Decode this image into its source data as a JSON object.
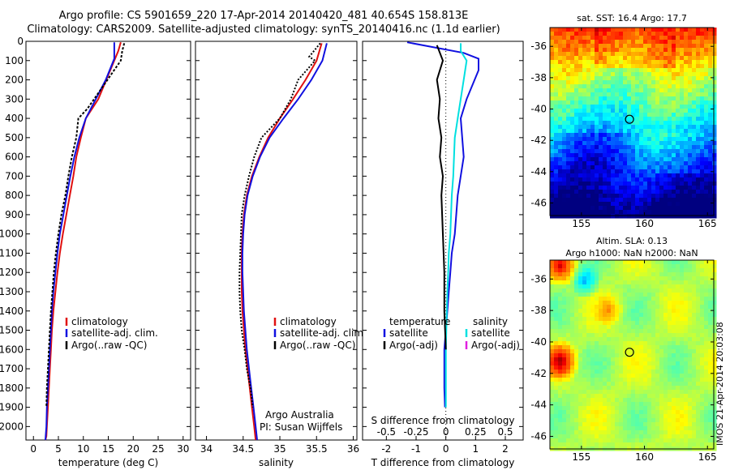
{
  "header": {
    "line1": "Argo profile: CS 5901659_220 17-Apr-2014 20140420_481 40.654S 158.813E",
    "line2": "Climatology: CARS2009. Satellite-adjusted climatology: synTS_20140416.nc (1.1d earlier)"
  },
  "colors": {
    "climatology": "#e01010",
    "satellite": "#1010e0",
    "argo": "#000000",
    "salinity_satellite": "#00e0e0",
    "salinity_argo": "#e020e0"
  },
  "chart_data": [
    {
      "type": "line",
      "xlabel": "temperature (deg C)",
      "xticks": [
        0,
        5,
        10,
        15,
        20,
        25,
        30
      ],
      "xlim": [
        -1.5,
        31.5
      ],
      "yticks": [
        0,
        100,
        200,
        300,
        400,
        500,
        600,
        700,
        800,
        900,
        1000,
        1100,
        1200,
        1300,
        1400,
        1500,
        1600,
        1700,
        1800,
        1900,
        2000
      ],
      "ylim": [
        0,
        2070
      ],
      "y_inverted": true,
      "legend": [
        "climatology",
        "satellite-adj. clim.",
        "Argo(..raw -QC)"
      ],
      "legend_position": "lower-left",
      "series": [
        {
          "name": "climatology",
          "x": [
            17.5,
            17.0,
            13.0,
            10.5,
            9.5,
            8.6,
            8.0,
            7.3,
            6.6,
            5.9,
            5.3,
            4.8,
            4.4,
            4.0,
            3.7,
            3.5,
            3.3,
            3.1,
            2.9,
            2.7,
            2.6,
            2.4
          ],
          "y": [
            5,
            50,
            300,
            400,
            500,
            600,
            700,
            800,
            900,
            1000,
            1100,
            1200,
            1300,
            1400,
            1500,
            1600,
            1700,
            1800,
            1900,
            2000,
            2050,
            2070
          ]
        },
        {
          "name": "satellite-adj. clim.",
          "x": [
            16.2,
            16.2,
            14.5,
            12.5,
            10.5,
            9.2,
            8.2,
            7.4,
            6.7,
            6.0,
            5.3,
            4.8,
            4.4,
            4.0,
            3.7,
            3.5,
            3.3,
            3.1,
            2.9,
            2.7,
            2.6,
            2.4
          ],
          "y": [
            5,
            90,
            200,
            300,
            400,
            500,
            600,
            700,
            800,
            900,
            1000,
            1100,
            1200,
            1300,
            1400,
            1500,
            1600,
            1700,
            1800,
            1900,
            2000,
            2070
          ]
        },
        {
          "name": "Argo(..raw -QC)",
          "x": [
            18.2,
            17.8,
            17.5,
            13.5,
            10.8,
            9.0,
            8.6,
            7.7,
            7.0,
            6.4,
            5.6,
            5.0,
            4.5,
            4.1,
            3.8,
            3.5,
            3.3,
            3.1,
            2.9,
            2.7,
            2.6
          ],
          "y": [
            10,
            50,
            100,
            250,
            350,
            400,
            500,
            600,
            700,
            800,
            900,
            1000,
            1100,
            1200,
            1300,
            1400,
            1500,
            1600,
            1700,
            1800,
            1900
          ]
        }
      ]
    },
    {
      "type": "line",
      "xlabel": "salinity",
      "xticks": [
        34,
        34.5,
        35,
        35.5,
        36
      ],
      "xlim": [
        33.85,
        36.05
      ],
      "yticks": [
        0,
        100,
        200,
        300,
        400,
        500,
        600,
        700,
        800,
        900,
        1000,
        1100,
        1200,
        1300,
        1400,
        1500,
        1600,
        1700,
        1800,
        1900,
        2000
      ],
      "ylim": [
        0,
        2070
      ],
      "y_inverted": true,
      "legend": [
        "climatology",
        "satellite-adj. clim.",
        "Argo(..raw -QC)"
      ],
      "legend_position": "middle-left",
      "annotations": [
        "Argo Australia",
        "PI: Susan Wijffels"
      ],
      "series": [
        {
          "name": "climatology",
          "x": [
            35.57,
            35.5,
            35.35,
            35.18,
            35.0,
            34.84,
            34.72,
            34.62,
            34.55,
            34.51,
            34.49,
            34.48,
            34.48,
            34.48,
            34.49,
            34.51,
            34.53,
            34.56,
            34.59,
            34.62,
            34.65,
            34.67
          ],
          "y": [
            10,
            100,
            200,
            300,
            400,
            500,
            600,
            700,
            800,
            900,
            1000,
            1100,
            1200,
            1300,
            1400,
            1500,
            1600,
            1700,
            1800,
            1900,
            2000,
            2070
          ]
        },
        {
          "name": "satellite-adj. clim.",
          "x": [
            35.64,
            35.58,
            35.43,
            35.25,
            35.05,
            34.86,
            34.73,
            34.63,
            34.56,
            34.52,
            34.5,
            34.49,
            34.49,
            34.5,
            34.51,
            34.53,
            34.55,
            34.58,
            34.61,
            34.64,
            34.67,
            34.69
          ],
          "y": [
            10,
            100,
            200,
            300,
            400,
            500,
            600,
            700,
            800,
            900,
            1000,
            1100,
            1200,
            1300,
            1400,
            1500,
            1600,
            1700,
            1800,
            1900,
            2000,
            2070
          ]
        },
        {
          "name": "Argo(..raw -QC)",
          "x": [
            35.55,
            35.4,
            35.48,
            35.25,
            35.15,
            35.0,
            34.75,
            34.65,
            34.58,
            34.52,
            34.48,
            34.47,
            34.46,
            34.45,
            34.45,
            34.46,
            34.48,
            34.52,
            34.55,
            34.6,
            34.63
          ],
          "y": [
            10,
            80,
            100,
            200,
            300,
            400,
            500,
            600,
            700,
            800,
            900,
            1000,
            1100,
            1200,
            1300,
            1400,
            1500,
            1600,
            1700,
            1800,
            1900
          ]
        }
      ]
    },
    {
      "type": "line",
      "xlabel": "T difference from climatology",
      "xticks": [
        -2,
        -1,
        0,
        1,
        2
      ],
      "xlim": [
        -2.8,
        2.6
      ],
      "top_label": "S difference from climatology",
      "top_ticks": [
        "-0.5",
        "-0.25",
        "0",
        "0.25",
        "0.5"
      ],
      "top_tick_values": [
        -2,
        -1,
        0,
        1,
        2
      ],
      "yticks": [
        0,
        100,
        200,
        300,
        400,
        500,
        600,
        700,
        800,
        900,
        1000,
        1100,
        1200,
        1300,
        1400,
        1500,
        1600,
        1700,
        1800,
        1900,
        2000
      ],
      "ylim": [
        0,
        2070
      ],
      "y_inverted": true,
      "legend": [
        "temperature",
        "satellite",
        "Argo(-adj)",
        "salinity",
        "satellite",
        "Argo(-adj)"
      ],
      "legend_position": "lower-middle",
      "series": [
        {
          "name": "temperature satellite",
          "x": [
            -1.3,
            0.6,
            1.1,
            1.1,
            0.7,
            0.5,
            0.6,
            0.5,
            0.4,
            0.3,
            0.2,
            0.15,
            0.1,
            0.05,
            0.0,
            -0.05,
            -0.05,
            -0.05,
            -0.03
          ],
          "y": [
            5,
            60,
            90,
            150,
            300,
            400,
            600,
            700,
            800,
            1000,
            1100,
            1200,
            1300,
            1400,
            1500,
            1600,
            1700,
            1800,
            1900
          ]
        },
        {
          "name": "salinity satellite",
          "x": [
            0.5,
            0.5,
            0.7,
            0.6,
            0.4,
            0.3,
            0.25,
            0.2,
            0.15,
            0.1,
            0.08,
            0.05,
            0.03,
            0.0,
            0.0
          ],
          "y": [
            10,
            50,
            100,
            200,
            400,
            500,
            700,
            800,
            1000,
            1100,
            1200,
            1300,
            1400,
            1600,
            1900
          ]
        },
        {
          "name": "temperature Argo(-adj)",
          "x": [
            -0.3,
            -0.1,
            -0.3,
            -0.2,
            -0.25,
            -0.15,
            -0.2,
            -0.1,
            -0.15,
            -0.1,
            -0.05,
            -0.05,
            0.0
          ],
          "y": [
            20,
            100,
            200,
            300,
            400,
            500,
            600,
            700,
            800,
            1000,
            1200,
            1400,
            1600
          ]
        }
      ]
    },
    {
      "type": "heatmap",
      "title": "sat. SST: 16.4 Argo: 17.7",
      "xticks": [
        155,
        160,
        165
      ],
      "yticks": [
        -36,
        -38,
        -40,
        -42,
        -44,
        -46
      ],
      "xlim": [
        152.5,
        165.5
      ],
      "ylim": [
        -46.8,
        -34.8
      ],
      "marker": {
        "lon": 158.813,
        "lat": -40.654
      }
    },
    {
      "type": "heatmap",
      "title_line1": "Altim. SLA: 0.13",
      "title_line2": "Argo h1000: NaN h2000: NaN",
      "xticks": [
        155,
        160,
        165
      ],
      "yticks": [
        -36,
        -38,
        -40,
        -42,
        -44,
        -46
      ],
      "xlim": [
        152.5,
        165.5
      ],
      "ylim": [
        -46.8,
        -34.8
      ],
      "marker": {
        "lon": 158.813,
        "lat": -40.654
      }
    }
  ],
  "watermark": "IMOS 21-Apr-2014 20:03:08"
}
